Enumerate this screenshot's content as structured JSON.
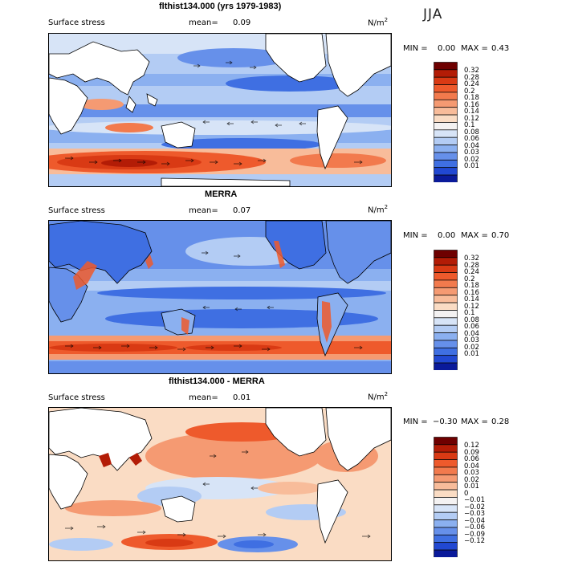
{
  "season": "JJA",
  "unit_base": "N/m",
  "unit_exp": "2",
  "panels": [
    {
      "id": "model",
      "title": "flthist134.000 (yrs 1979-1983)",
      "variable": "Surface stress",
      "mean_label": "mean=",
      "mean_value": "0.09",
      "min_label": "MIN =",
      "min_value": "0.00",
      "max_label": "MAX =",
      "max_value": "0.43",
      "levels": [
        "0.32",
        "0.28",
        "0.24",
        "0.2",
        "0.18",
        "0.16",
        "0.14",
        "0.12",
        "0.1",
        "0.08",
        "0.06",
        "0.04",
        "0.03",
        "0.02",
        "0.01"
      ],
      "colors": [
        "#6e0000",
        "#b31c06",
        "#d93a14",
        "#ee5a2c",
        "#f27a4d",
        "#f59a72",
        "#f8bc9a",
        "#fadcc4",
        "#f4f2f2",
        "#d7e4f7",
        "#b3ccf4",
        "#8bb0f0",
        "#6690ea",
        "#3f6fe2",
        "#2148d2",
        "#0a1a9a"
      ]
    },
    {
      "id": "merra",
      "title": "MERRA",
      "variable": "Surface stress",
      "mean_label": "mean=",
      "mean_value": "0.07",
      "min_label": "MIN =",
      "min_value": "0.00",
      "max_label": "MAX =",
      "max_value": "0.70",
      "levels": [
        "0.32",
        "0.28",
        "0.24",
        "0.2",
        "0.18",
        "0.16",
        "0.14",
        "0.12",
        "0.1",
        "0.08",
        "0.06",
        "0.04",
        "0.03",
        "0.02",
        "0.01"
      ],
      "colors": [
        "#6e0000",
        "#b31c06",
        "#d93a14",
        "#ee5a2c",
        "#f27a4d",
        "#f59a72",
        "#f8bc9a",
        "#fadcc4",
        "#f4f2f2",
        "#d7e4f7",
        "#b3ccf4",
        "#8bb0f0",
        "#6690ea",
        "#3f6fe2",
        "#2148d2",
        "#0a1a9a"
      ]
    },
    {
      "id": "diff",
      "title": "flthist134.000 - MERRA",
      "variable": "Surface stress",
      "mean_label": "mean=",
      "mean_value": "0.01",
      "min_label": "MIN =",
      "min_value": "−0.30",
      "max_label": "MAX =",
      "max_value": "0.28",
      "levels": [
        "0.12",
        "0.09",
        "0.06",
        "0.04",
        "0.03",
        "0.02",
        "0.01",
        "0",
        "−0.01",
        "−0.02",
        "−0.03",
        "−0.04",
        "−0.06",
        "−0.09",
        "−0.12"
      ],
      "colors": [
        "#6e0000",
        "#b31c06",
        "#d93a14",
        "#ee5a2c",
        "#f27a4d",
        "#f59a72",
        "#f8bc9a",
        "#fadcc4",
        "#f4f2f2",
        "#d7e4f7",
        "#b3ccf4",
        "#8bb0f0",
        "#6690ea",
        "#3f6fe2",
        "#2148d2",
        "#0a1a9a"
      ]
    }
  ]
}
